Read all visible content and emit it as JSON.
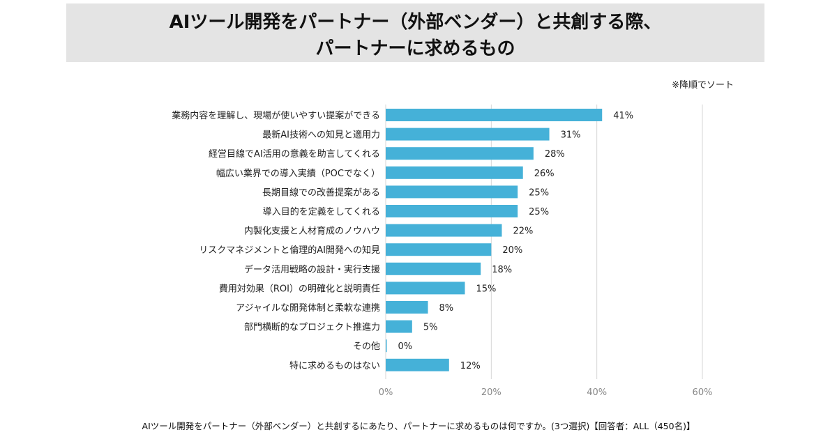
{
  "title_line1": "AIツール開発をパートナー（外部ベンダー）と共創する際、",
  "title_line2": "パートナーに求めるもの",
  "sort_note": "※降順でソート",
  "footer": "AIツール開発をパートナー（外部ベンダー）と共創するにあたり、パートナーに求めるものは何ですか。(3つ選択)【回答者：ALL（450名)】",
  "colors": {
    "bar": "#45b1d8",
    "grid": "#d6d6d6",
    "label": "#222222",
    "tick": "#888888"
  },
  "chart_data": {
    "type": "bar",
    "orientation": "horizontal",
    "categories": [
      "業務内容を理解し、現場が使いやすい提案ができる",
      "最新AI技術への知見と適用力",
      "経営目線でAI活用の意義を助言してくれる",
      "幅広い業界での導入実績（POCでなく）",
      "長期目線での改善提案がある",
      "導入目的を定義をしてくれる",
      "内製化支援と人材育成のノウハウ",
      "リスクマネジメントと倫理的AI開発への知見",
      "データ活用戦略の設計・実行支援",
      "費用対効果（ROI）の明確化と説明責任",
      "アジャイルな開発体制と柔軟な連携",
      "部門横断的なプロジェクト推進力",
      "その他",
      "特に求めるものはない"
    ],
    "values": [
      41,
      31,
      28,
      26,
      25,
      25,
      22,
      20,
      18,
      15,
      8,
      5,
      0,
      12
    ],
    "value_labels": [
      "41%",
      "31%",
      "28%",
      "26%",
      "25%",
      "25%",
      "22%",
      "20%",
      "18%",
      "15%",
      "8%",
      "5%",
      "0%",
      "12%"
    ],
    "xlim": [
      0,
      60
    ],
    "xticks": [
      0,
      20,
      40,
      60
    ],
    "xtick_labels": [
      "0%",
      "20%",
      "40%",
      "60%"
    ],
    "unit": "%",
    "grid": true
  }
}
